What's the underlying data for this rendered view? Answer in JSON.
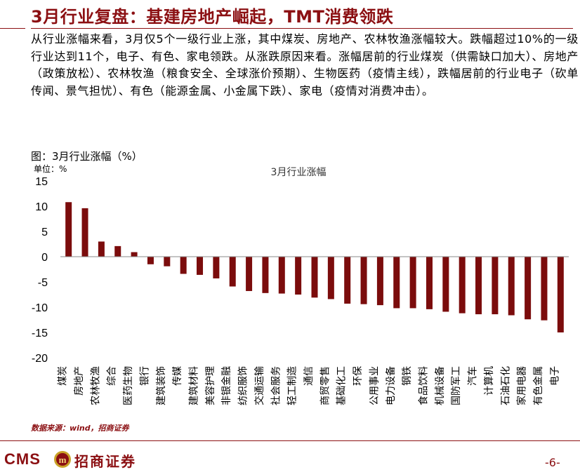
{
  "slide": {
    "title": "3月行业复盘：基建房地产崛起，TMT消费领跌",
    "body": "从行业涨幅来看，3月仅5个一级行业上涨，其中煤炭、房地产、农林牧渔涨幅较大。跌幅超过10%的一级行业达到11个，电子、有色、家电领跌。从涨跌原因来看。涨幅居前的行业煤炭（供需缺口加大）、房地产（政策放松）、农林牧渔（粮食安全、全球涨价预期）、生物医药（疫情主线），跌幅居前的行业电子（砍单传闻、景气担忧）、有色（能源金属、小金属下跌）、家电（疫情对消费冲击）。",
    "source": "数据来源：wind，招商证券",
    "page_number": "-6-"
  },
  "logo": {
    "latin": "CMS",
    "cn": "招商证券",
    "mark_text": "m"
  },
  "colors": {
    "accent": "#8B0F12",
    "bar": "#7B0C0C"
  },
  "chart_data": {
    "type": "bar",
    "caption": "图：3月行业涨幅（%）",
    "unit_label": "单位：%",
    "title": "3月行业涨幅",
    "categories": [
      "煤炭",
      "房地产",
      "农林牧渔",
      "综合",
      "医药生物",
      "银行",
      "建筑装饰",
      "传媒",
      "建筑材料",
      "美容护理",
      "非银金融",
      "纺织服饰",
      "交通运输",
      "社会服务",
      "轻工制造",
      "通信",
      "商贸零售",
      "基础化工",
      "环保",
      "公用事业",
      "电力设备",
      "钢铁",
      "食品饮料",
      "机械设备",
      "国防军工",
      "汽车",
      "计算机",
      "石油石化",
      "家用电器",
      "有色金属",
      "电子"
    ],
    "values": [
      10.8,
      9.6,
      3.0,
      2.1,
      0.9,
      -1.5,
      -1.9,
      -3.4,
      -3.6,
      -4.3,
      -5.9,
      -6.8,
      -7.2,
      -7.3,
      -7.5,
      -8.1,
      -8.4,
      -9.3,
      -9.4,
      -9.6,
      -10.2,
      -10.2,
      -10.4,
      -10.9,
      -11.2,
      -11.4,
      -11.4,
      -11.6,
      -12.4,
      -12.6,
      -15.0
    ],
    "ylim": [
      -20,
      15
    ],
    "yticks": [
      "15",
      "10",
      "5",
      "0",
      "-5",
      "-10",
      "-15",
      "-20"
    ],
    "grid": false,
    "legend": "none"
  }
}
